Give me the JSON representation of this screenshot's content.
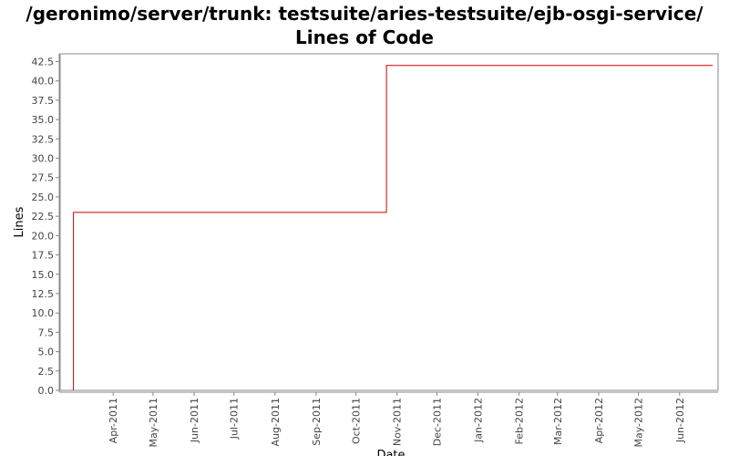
{
  "chart_data": {
    "type": "line",
    "step": true,
    "title": "/geronimo/server/trunk: testsuite/aries-testsuite/ejb-osgi-service/ Lines of Code",
    "xlabel": "Date",
    "ylabel": "Lines",
    "ylim": [
      0,
      43.5
    ],
    "yticks": [
      "0.0",
      "2.5",
      "5.0",
      "7.5",
      "10.0",
      "12.5",
      "15.0",
      "17.5",
      "20.0",
      "22.5",
      "25.0",
      "27.5",
      "30.0",
      "32.5",
      "35.0",
      "37.5",
      "40.0",
      "42.5"
    ],
    "xlim": [
      "2011-02-20",
      "2012-06-30"
    ],
    "xticks": [
      {
        "date": "2011-04-01",
        "label": "Apr-2011"
      },
      {
        "date": "2011-05-01",
        "label": "May-2011"
      },
      {
        "date": "2011-06-01",
        "label": "Jun-2011"
      },
      {
        "date": "2011-07-01",
        "label": "Jul-2011"
      },
      {
        "date": "2011-08-01",
        "label": "Aug-2011"
      },
      {
        "date": "2011-09-01",
        "label": "Sep-2011"
      },
      {
        "date": "2011-10-01",
        "label": "Oct-2011"
      },
      {
        "date": "2011-11-01",
        "label": "Nov-2011"
      },
      {
        "date": "2011-12-01",
        "label": "Dec-2011"
      },
      {
        "date": "2012-01-01",
        "label": "Jan-2012"
      },
      {
        "date": "2012-02-01",
        "label": "Feb-2012"
      },
      {
        "date": "2012-03-01",
        "label": "Mar-2012"
      },
      {
        "date": "2012-04-01",
        "label": "Apr-2012"
      },
      {
        "date": "2012-05-01",
        "label": "May-2012"
      },
      {
        "date": "2012-06-01",
        "label": "Jun-2012"
      }
    ],
    "grid": false,
    "legend": "none",
    "series": [
      {
        "color": "#cc0000",
        "points": [
          {
            "x": "2011-03-02",
            "y": 0
          },
          {
            "x": "2011-03-02",
            "y": 23
          },
          {
            "x": "2011-10-24",
            "y": 23
          },
          {
            "x": "2011-10-24",
            "y": 42
          },
          {
            "x": "2012-06-26",
            "y": 42
          }
        ]
      }
    ]
  }
}
